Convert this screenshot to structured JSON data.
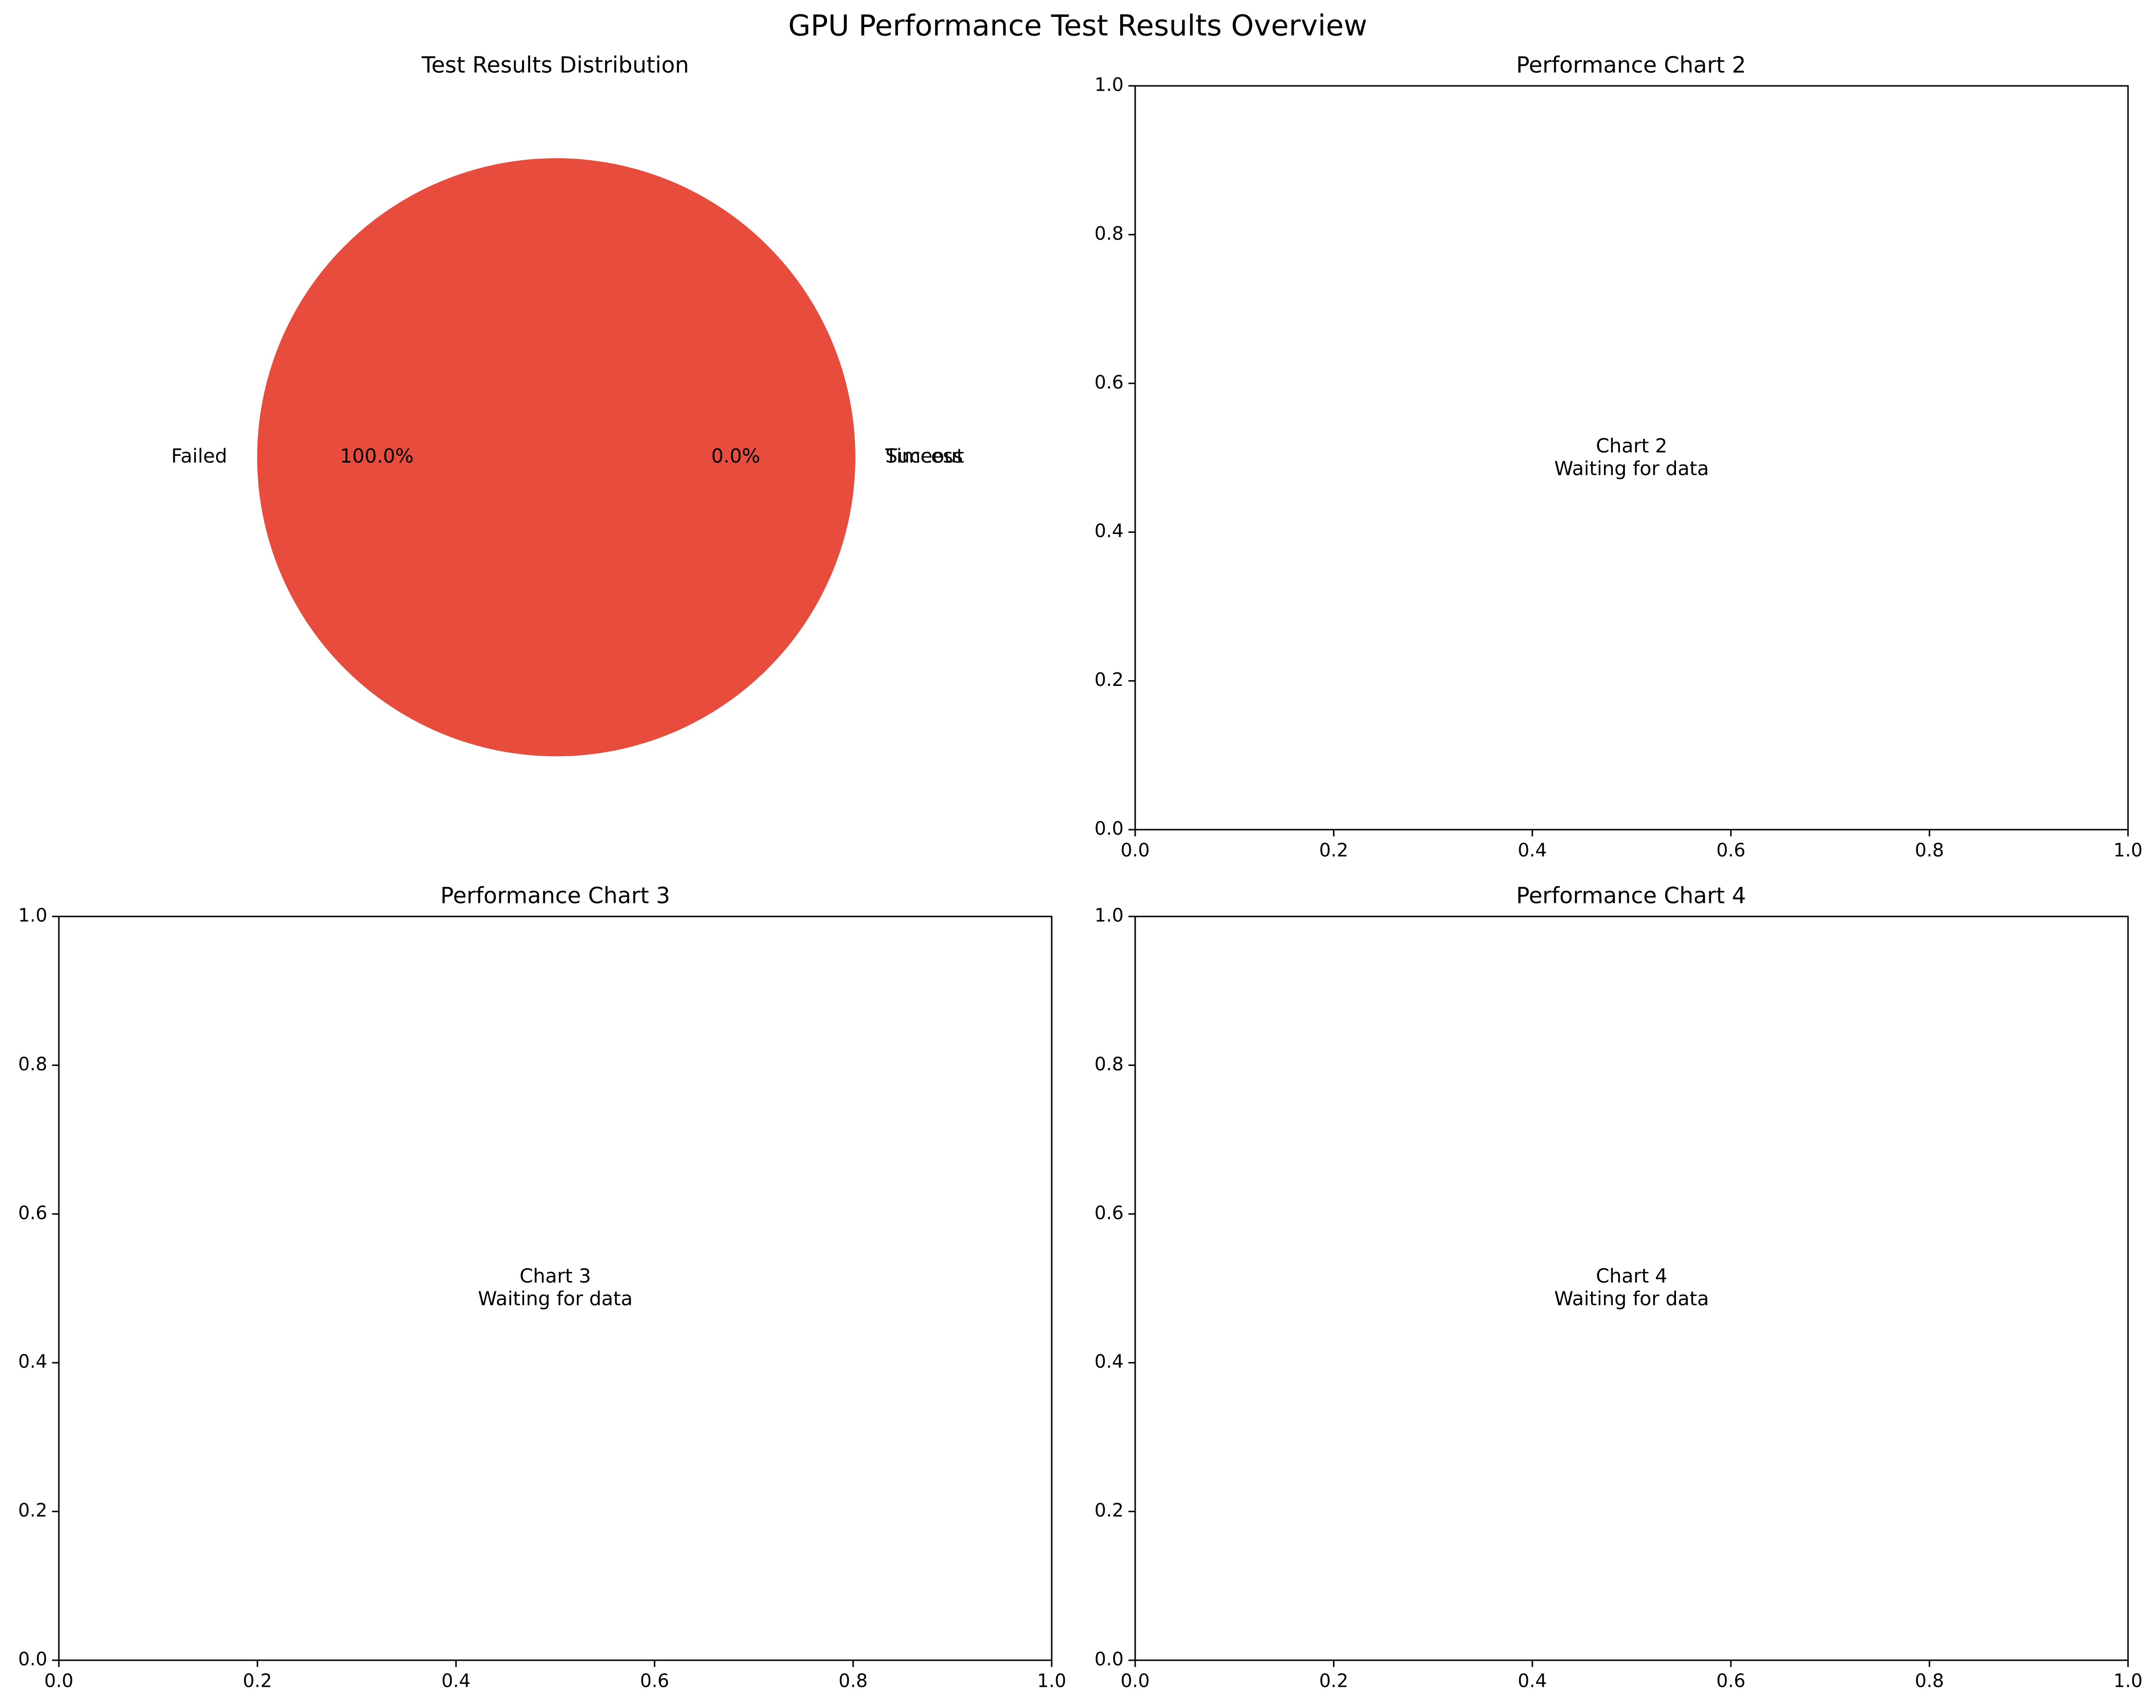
{
  "figure": {
    "suptitle": "GPU Performance Test Results Overview"
  },
  "chart_data": [
    {
      "type": "pie",
      "title": "Test Results Distribution",
      "slices": [
        {
          "label": "Success",
          "value": 0,
          "pct_label": "0.0%",
          "color": "#2ecc71"
        },
        {
          "label": "Failed",
          "value": 100,
          "pct_label": "100.0%",
          "color": "#e74c3c"
        },
        {
          "label": "Timeout",
          "value": 0,
          "pct_label": "0.0%",
          "color": "#f39c12"
        }
      ]
    },
    {
      "type": "scatter",
      "title": "Performance Chart 2",
      "message": [
        "Chart 2",
        "Waiting for data"
      ],
      "xlim": [
        0,
        1
      ],
      "ylim": [
        0,
        1
      ],
      "xticks": [
        "0.0",
        "0.2",
        "0.4",
        "0.6",
        "0.8",
        "1.0"
      ],
      "yticks": [
        "0.0",
        "0.2",
        "0.4",
        "0.6",
        "0.8",
        "1.0"
      ],
      "series": []
    },
    {
      "type": "scatter",
      "title": "Performance Chart 3",
      "message": [
        "Chart 3",
        "Waiting for data"
      ],
      "xlim": [
        0,
        1
      ],
      "ylim": [
        0,
        1
      ],
      "xticks": [
        "0.0",
        "0.2",
        "0.4",
        "0.6",
        "0.8",
        "1.0"
      ],
      "yticks": [
        "0.0",
        "0.2",
        "0.4",
        "0.6",
        "0.8",
        "1.0"
      ],
      "series": []
    },
    {
      "type": "scatter",
      "title": "Performance Chart 4",
      "message": [
        "Chart 4",
        "Waiting for data"
      ],
      "xlim": [
        0,
        1
      ],
      "ylim": [
        0,
        1
      ],
      "xticks": [
        "0.0",
        "0.2",
        "0.4",
        "0.6",
        "0.8",
        "1.0"
      ],
      "yticks": [
        "0.0",
        "0.2",
        "0.4",
        "0.6",
        "0.8",
        "1.0"
      ],
      "series": []
    }
  ]
}
